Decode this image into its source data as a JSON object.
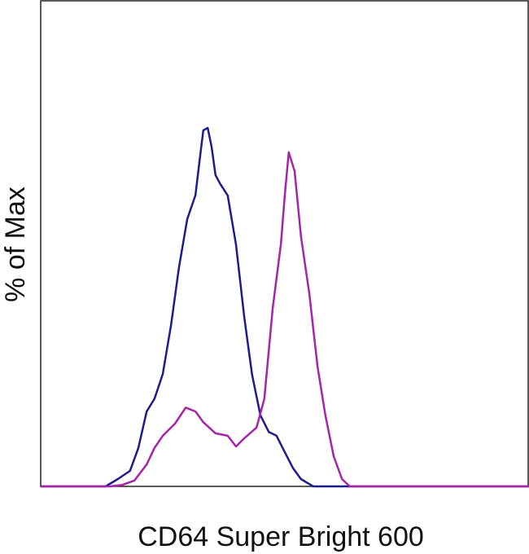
{
  "chart_data": {
    "type": "line",
    "xlabel": "CD64 Super Bright 600",
    "ylabel": "% of Max",
    "xlim": [
      0,
      100
    ],
    "ylim": [
      0,
      100
    ],
    "series": [
      {
        "color": "#1c1c8e",
        "x": [
          0,
          13.3,
          15.8,
          18.3,
          20,
          21.7,
          23.3,
          25,
          26.7,
          28.3,
          30,
          31.7,
          32.5,
          33.3,
          34.2,
          35,
          35.8,
          36.7,
          38.3,
          40,
          41.7,
          43.3,
          45,
          46.7,
          48.3,
          50,
          51.7,
          53.3,
          55.8,
          100
        ],
        "values": [
          0,
          0,
          1.5,
          3.2,
          7.9,
          15.4,
          18,
          23.1,
          33.2,
          44.9,
          54.9,
          59.9,
          66.7,
          73.2,
          73.7,
          69.8,
          64,
          62.3,
          59.8,
          49.7,
          34.7,
          22.9,
          14.6,
          11.2,
          10.4,
          7,
          3.7,
          1.5,
          0,
          0
        ]
      },
      {
        "color": "#a524a8",
        "x": [
          0,
          14.2,
          16.7,
          19.2,
          21.7,
          23.3,
          25,
          27.5,
          29.7,
          31.7,
          33.3,
          35.8,
          38.3,
          40,
          41.7,
          44.2,
          45.8,
          47.5,
          49.2,
          50,
          50.8,
          52,
          53.3,
          55,
          56.7,
          58.3,
          60,
          61.7,
          63.3,
          100
        ],
        "values": [
          0,
          0,
          0.3,
          1.2,
          4.5,
          7.9,
          10.4,
          12.9,
          16.2,
          15.4,
          13.2,
          10.9,
          10.4,
          8.2,
          9.9,
          12.1,
          18,
          36.5,
          49.9,
          60,
          68.7,
          64.8,
          51.4,
          39.7,
          24.6,
          14.6,
          6.2,
          1.5,
          0,
          0
        ]
      }
    ]
  }
}
